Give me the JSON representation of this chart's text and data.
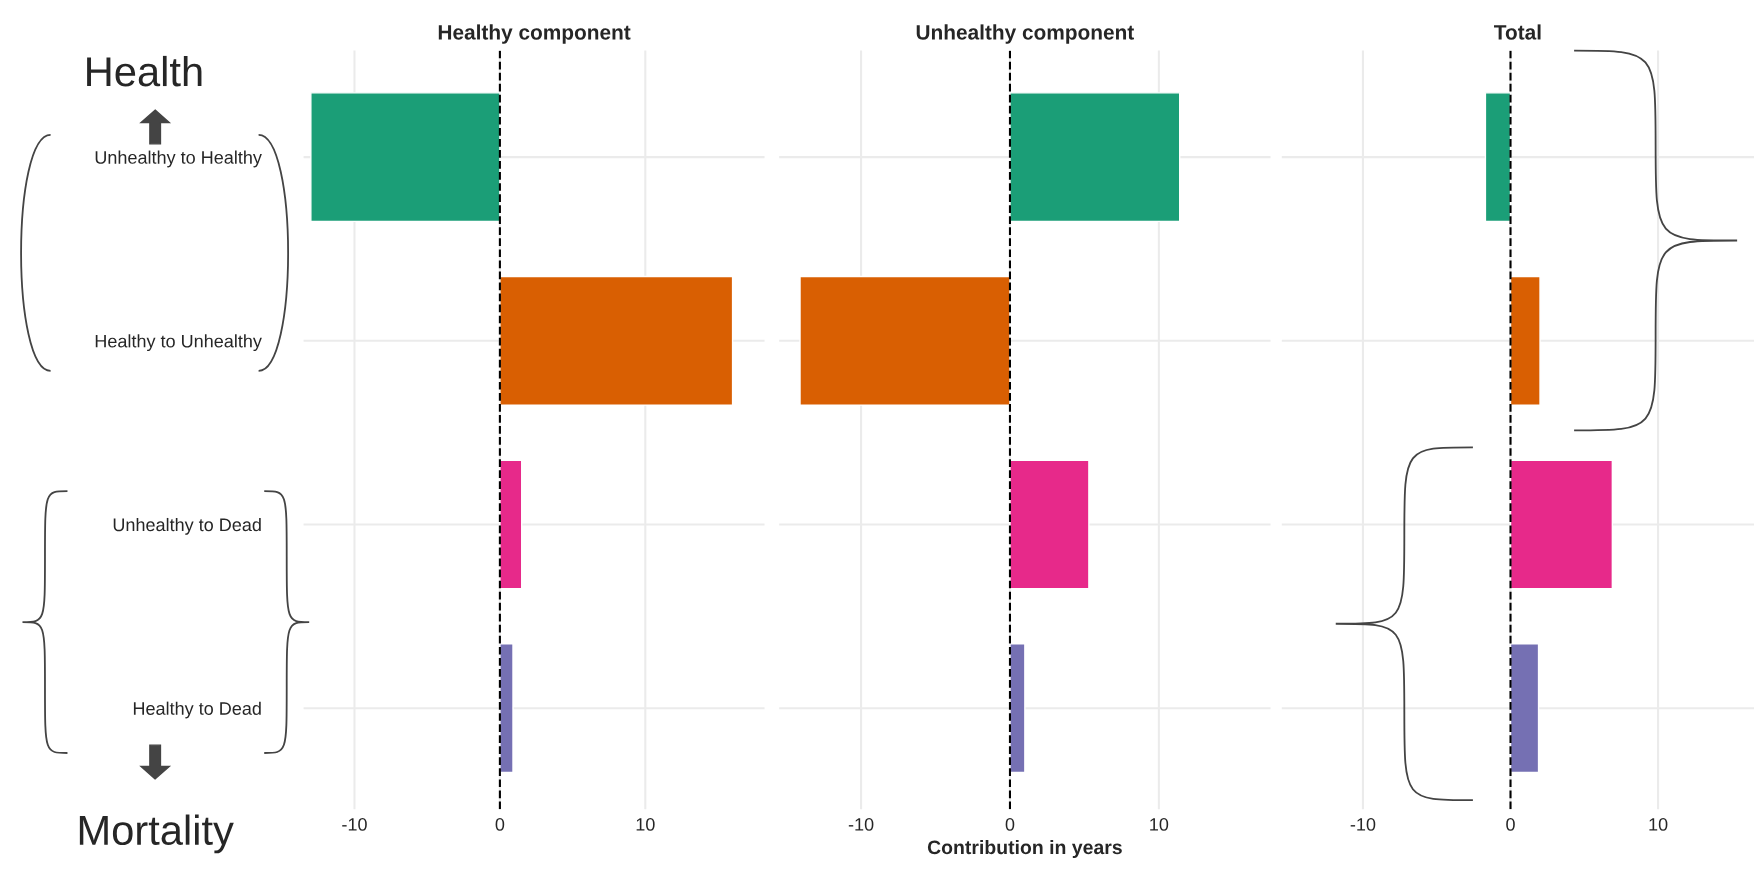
{
  "chart_data": [
    {
      "type": "bar",
      "orientation": "horizontal",
      "title": "Healthy component",
      "categories": [
        "Unhealthy to Healthy",
        "Healthy to Unhealthy",
        "Unhealthy to Dead",
        "Healthy to Dead"
      ],
      "values": [
        -13.0,
        16.0,
        1.5,
        0.9
      ],
      "colors": [
        "#1b9e77",
        "#d95f02",
        "#e7298a",
        "#7570b3"
      ],
      "xlim": [
        -13.5,
        18.2
      ],
      "xticks": [
        -10,
        0,
        10
      ],
      "grid": true,
      "ref_lines": [
        {
          "axis": "x",
          "value": 0,
          "line_style": "dashed",
          "color": "#000000"
        }
      ],
      "annotations": [
        "Health",
        "Mortality"
      ]
    },
    {
      "type": "bar",
      "orientation": "horizontal",
      "title": "Unhealthy component",
      "xlabel": "Contribution in years",
      "categories": [
        null,
        null,
        null,
        null
      ],
      "values": [
        11.4,
        -14.1,
        5.3,
        1.0
      ],
      "colors": [
        "#1b9e77",
        "#d95f02",
        "#e7298a",
        "#7570b3"
      ],
      "xlim": [
        -15.5,
        17.5
      ],
      "xticks": [
        -10,
        0,
        10
      ],
      "grid": true,
      "tick_labels": "x",
      "ref_lines": [
        {
          "axis": "x",
          "value": 0,
          "line_style": "dashed",
          "color": "#000000"
        }
      ]
    },
    {
      "type": "bar",
      "orientation": "horizontal",
      "title": "Total",
      "categories": [
        null,
        null,
        null,
        null
      ],
      "values": [
        -1.7,
        2.0,
        6.9,
        1.9
      ],
      "colors": [
        "#1b9e77",
        "#d95f02",
        "#e7298a",
        "#7570b3"
      ],
      "xlim": [
        -15.5,
        16.5
      ],
      "xticks": [
        -10,
        0,
        10
      ],
      "grid": true,
      "tick_labels": "x",
      "ref_lines": [
        {
          "axis": "x",
          "value": 0,
          "line_style": "dashed",
          "color": "#000000"
        }
      ]
    }
  ]
}
